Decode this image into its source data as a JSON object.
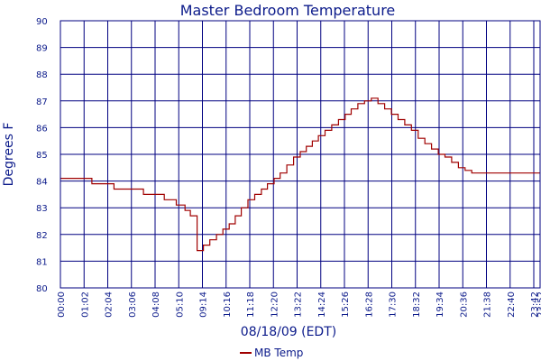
{
  "colors": {
    "text": "#0b1a8a",
    "grid": "#000080",
    "frame": "#000080",
    "series": "#a00000",
    "background": "#ffffff"
  },
  "chart_data": {
    "type": "line",
    "title": "Master Bedroom Temperature",
    "xlabel": "08/18/09 (EDT)",
    "ylabel": "Degrees F",
    "ylim": [
      80,
      90
    ],
    "yticks": [
      80,
      81,
      82,
      83,
      84,
      85,
      86,
      87,
      88,
      89,
      90
    ],
    "xlim": [
      "00:00",
      "23:52"
    ],
    "xtick_labels": [
      "00:00",
      "01:02",
      "02:04",
      "03:06",
      "04:08",
      "05:10",
      "09:14",
      "10:16",
      "11:18",
      "12:20",
      "13:22",
      "14:24",
      "15:26",
      "16:28",
      "17:30",
      "18:32",
      "19:34",
      "20:36",
      "21:38",
      "22:40",
      "23:42",
      "23:52"
    ],
    "grid": true,
    "legend": {
      "position": "bottom-center",
      "entries": [
        "MB Temp"
      ]
    },
    "series": [
      {
        "name": "MB Temp",
        "color": "#a00000",
        "step": true,
        "x": [
          "00:00",
          "01:34",
          "02:40",
          "04:08",
          "05:10",
          "05:46",
          "06:12",
          "06:28",
          "06:48",
          "07:07",
          "07:26",
          "07:46",
          "08:05",
          "08:24",
          "08:42",
          "09:00",
          "09:20",
          "09:40",
          "10:00",
          "10:18",
          "10:38",
          "10:56",
          "11:16",
          "11:36",
          "11:56",
          "12:14",
          "12:32",
          "12:50",
          "13:10",
          "13:30",
          "13:50",
          "14:10",
          "14:28",
          "14:48",
          "15:08",
          "15:28",
          "15:48",
          "16:08",
          "16:28",
          "16:48",
          "17:08",
          "17:28",
          "17:48",
          "18:08",
          "18:28",
          "18:48",
          "19:08",
          "19:28",
          "19:48",
          "20:08",
          "20:28",
          "20:48",
          "21:08",
          "21:28",
          "21:48",
          "22:08",
          "22:28",
          "22:48",
          "23:08",
          "23:28",
          "23:52"
        ],
        "y": [
          84.1,
          83.9,
          83.7,
          83.5,
          83.3,
          83.1,
          82.9,
          82.7,
          81.4,
          81.6,
          81.8,
          82.0,
          82.2,
          82.4,
          82.7,
          83.0,
          83.3,
          83.5,
          83.7,
          83.9,
          84.1,
          84.3,
          84.6,
          84.9,
          85.1,
          85.3,
          85.5,
          85.7,
          85.9,
          86.1,
          86.3,
          86.5,
          86.7,
          86.9,
          87.0,
          87.1,
          86.9,
          86.7,
          86.5,
          86.3,
          86.1,
          85.9,
          85.6,
          85.4,
          85.2,
          85.0,
          84.9,
          84.7,
          84.5,
          84.4,
          84.3,
          84.3,
          84.3,
          84.3,
          84.3,
          84.3,
          84.3,
          84.3,
          84.3,
          84.3,
          84.3
        ]
      }
    ]
  }
}
